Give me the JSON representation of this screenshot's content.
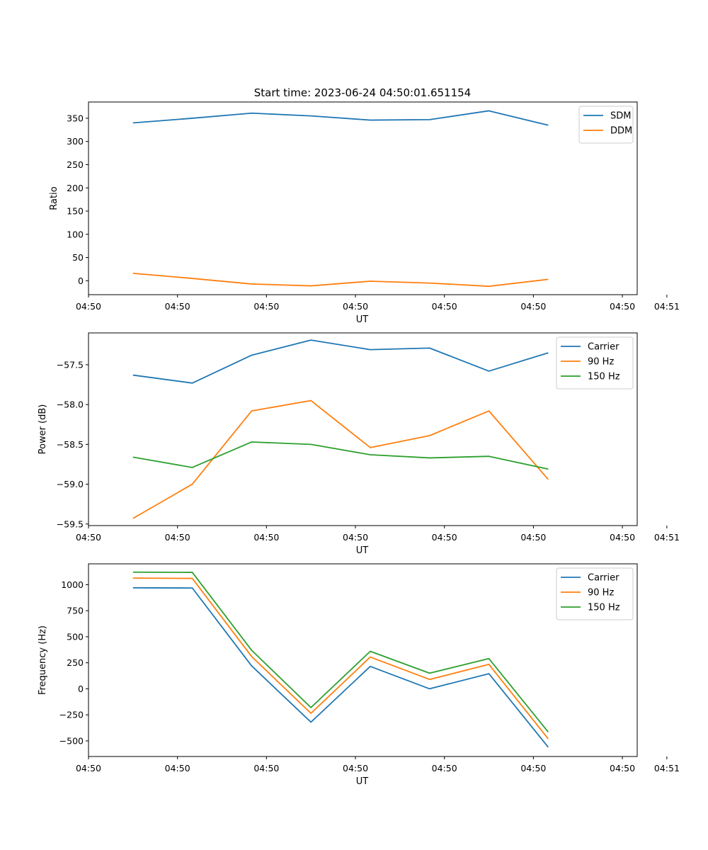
{
  "title": "Start time: 2023-06-24 04:50:01.651154",
  "chart_data": [
    {
      "type": "line",
      "ylabel": "Ratio",
      "xlabel": "UT",
      "x": [
        0,
        1,
        2,
        3,
        4,
        5,
        6,
        7
      ],
      "xlim": [
        -0.75,
        8.5
      ],
      "x_ticks": [
        -0.75,
        0.75,
        2.25,
        3.75,
        5.25,
        6.75,
        8.25
      ],
      "x_tick_labels": [
        "04:50",
        "04:50",
        "04:50",
        "04:50",
        "04:50",
        "04:50",
        "04:50"
      ],
      "x_tick_labels_extra": [
        {
          "pos": 9.0,
          "label": "04:51"
        }
      ],
      "ylim": [
        -30,
        385
      ],
      "y_ticks": [
        0,
        50,
        100,
        150,
        200,
        250,
        300,
        350
      ],
      "y_tick_labels": [
        "0",
        "50",
        "100",
        "150",
        "200",
        "250",
        "300",
        "350"
      ],
      "legend": "top-right",
      "series": [
        {
          "name": "SDM",
          "color": "#1f77b4",
          "values": [
            340,
            350,
            361,
            355,
            346,
            347,
            366,
            335
          ]
        },
        {
          "name": "DDM",
          "color": "#ff7f0e",
          "values": [
            16,
            5,
            -7,
            -11,
            -1,
            -5,
            -12,
            3
          ]
        }
      ]
    },
    {
      "type": "line",
      "ylabel": "Power (dB)",
      "xlabel": "UT",
      "x": [
        0,
        1,
        2,
        3,
        4,
        5,
        6,
        7
      ],
      "xlim": [
        -0.75,
        8.5
      ],
      "x_ticks": [
        -0.75,
        0.75,
        2.25,
        3.75,
        5.25,
        6.75,
        8.25
      ],
      "x_tick_labels": [
        "04:50",
        "04:50",
        "04:50",
        "04:50",
        "04:50",
        "04:50",
        "04:50"
      ],
      "x_tick_labels_extra": [
        {
          "pos": 9.0,
          "label": "04:51"
        }
      ],
      "ylim": [
        -59.52,
        -57.1
      ],
      "y_ticks": [
        -59.5,
        -59.0,
        -58.5,
        -58.0,
        -57.5
      ],
      "y_tick_labels": [
        "−59.5",
        "−59.0",
        "−58.5",
        "−58.0",
        "−57.5"
      ],
      "legend": "top-right",
      "series": [
        {
          "name": "Carrier",
          "color": "#1f77b4",
          "values": [
            -57.63,
            -57.73,
            -57.38,
            -57.19,
            -57.31,
            -57.29,
            -57.58,
            -57.35
          ]
        },
        {
          "name": "90 Hz",
          "color": "#ff7f0e",
          "values": [
            -59.43,
            -59.0,
            -58.08,
            -57.95,
            -58.54,
            -58.39,
            -58.08,
            -58.94
          ]
        },
        {
          "name": "150 Hz",
          "color": "#2ca02c",
          "values": [
            -58.66,
            -58.79,
            -58.47,
            -58.5,
            -58.63,
            -58.67,
            -58.65,
            -58.81
          ]
        }
      ]
    },
    {
      "type": "line",
      "ylabel": "Frequency (Hz)",
      "xlabel": "UT",
      "x": [
        0,
        1,
        2,
        3,
        4,
        5,
        6,
        7
      ],
      "xlim": [
        -0.75,
        8.5
      ],
      "x_ticks": [
        -0.75,
        0.75,
        2.25,
        3.75,
        5.25,
        6.75,
        8.25
      ],
      "x_tick_labels": [
        "04:50",
        "04:50",
        "04:50",
        "04:50",
        "04:50",
        "04:50",
        "04:50"
      ],
      "x_tick_labels_extra": [
        {
          "pos": 9.0,
          "label": "04:51"
        }
      ],
      "ylim": [
        -650,
        1200
      ],
      "y_ticks": [
        -500,
        -250,
        0,
        250,
        500,
        750,
        1000
      ],
      "y_tick_labels": [
        "−500",
        "−250",
        "0",
        "250",
        "500",
        "750",
        "1000"
      ],
      "legend": "top-right",
      "series": [
        {
          "name": "Carrier",
          "color": "#1f77b4",
          "values": [
            970,
            968,
            220,
            -320,
            215,
            0,
            145,
            -560
          ]
        },
        {
          "name": "90 Hz",
          "color": "#ff7f0e",
          "values": [
            1063,
            1060,
            310,
            -235,
            305,
            90,
            235,
            -480
          ]
        },
        {
          "name": "150 Hz",
          "color": "#2ca02c",
          "values": [
            1120,
            1118,
            370,
            -180,
            360,
            150,
            290,
            -415
          ]
        }
      ]
    }
  ]
}
